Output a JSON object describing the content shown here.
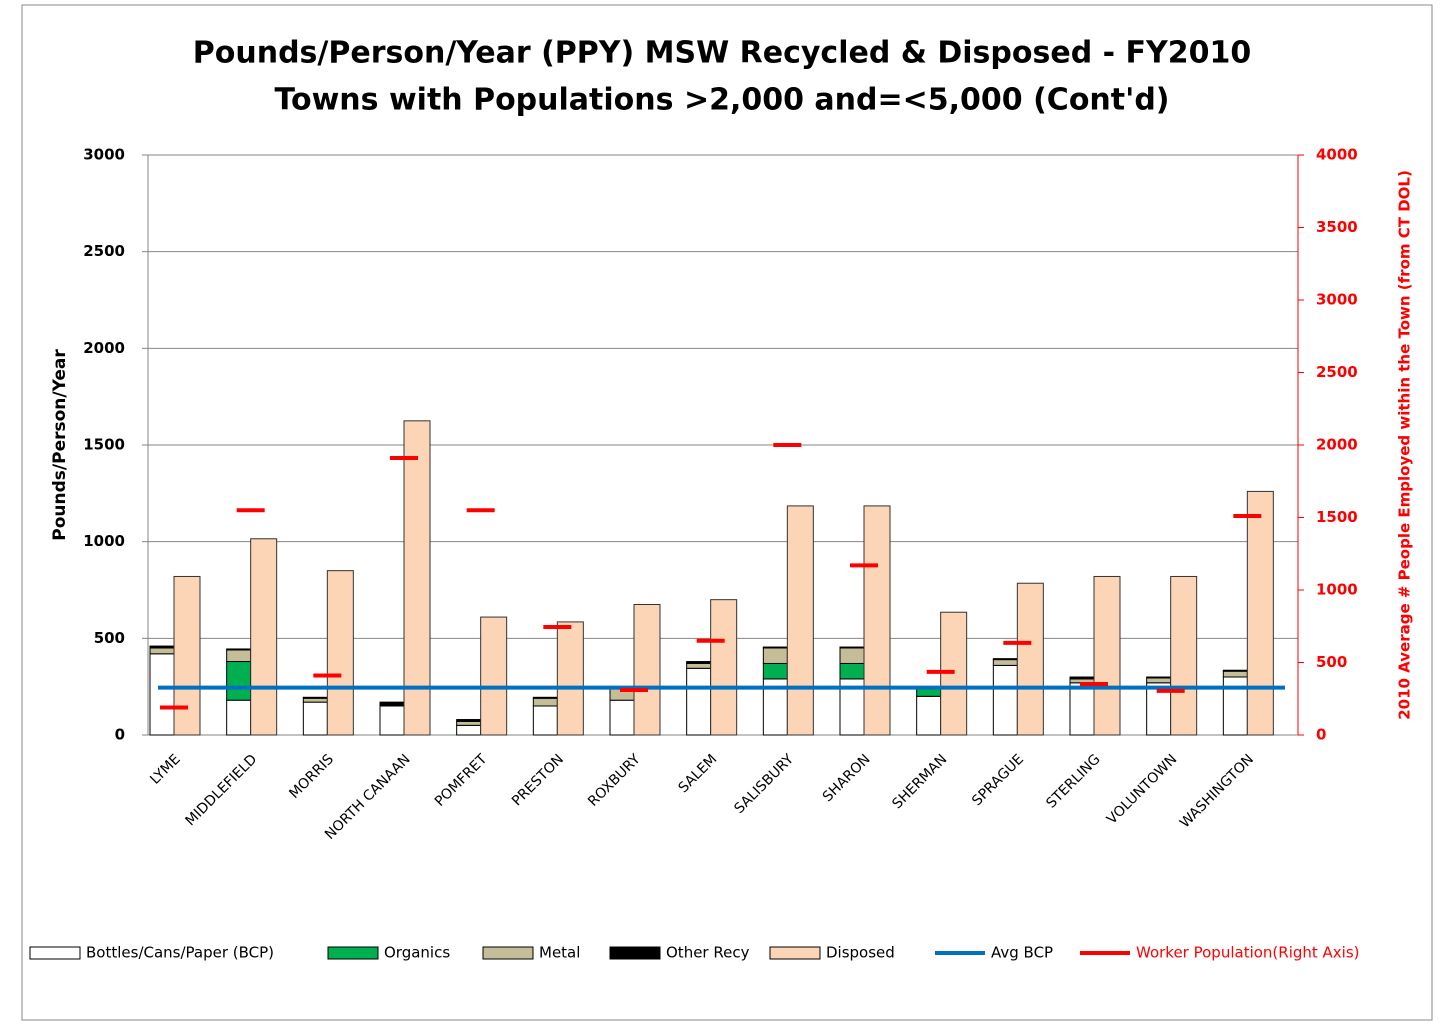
{
  "chart_data": {
    "type": "bar",
    "title": "Pounds/Person/Year (PPY) MSW Recycled & Disposed - FY2010",
    "subtitle": "Towns with Populations >2,000 and=<5,000 (Cont'd)",
    "ylabel": "Pounds/Person/Year",
    "y2label": "2010 Average # People Employed within the Town (from CT DOL)",
    "categories": [
      "LYME",
      "MIDDLEFIELD",
      "MORRIS",
      "NORTH CANAAN",
      "POMFRET",
      "PRESTON",
      "ROXBURY",
      "SALEM",
      "SALISBURY",
      "SHARON",
      "SHERMAN",
      "SPRAGUE",
      "STERLING",
      "VOLUNTOWN",
      "WASHINGTON"
    ],
    "series": [
      {
        "name": "Bottles/Cans/Paper (BCP)",
        "type": "stacked-bar",
        "color": "#ffffff",
        "values": [
          420,
          180,
          170,
          150,
          50,
          150,
          180,
          345,
          290,
          290,
          200,
          360,
          270,
          270,
          300
        ]
      },
      {
        "name": "Organics",
        "type": "stacked-bar",
        "color": "#00b050",
        "values": [
          0,
          200,
          0,
          0,
          0,
          0,
          0,
          0,
          80,
          80,
          40,
          0,
          0,
          0,
          0
        ]
      },
      {
        "name": "Metal",
        "type": "stacked-bar",
        "color": "#c4bd97",
        "values": [
          30,
          60,
          20,
          5,
          20,
          40,
          60,
          25,
          80,
          80,
          0,
          30,
          20,
          25,
          30
        ]
      },
      {
        "name": "Other Recy",
        "type": "stacked-bar",
        "color": "#000000",
        "values": [
          10,
          5,
          5,
          15,
          10,
          5,
          0,
          10,
          5,
          5,
          5,
          5,
          10,
          5,
          5
        ]
      },
      {
        "name": "Disposed",
        "type": "bar",
        "color": "#fbd5b5",
        "values": [
          820,
          1015,
          850,
          1625,
          610,
          585,
          675,
          700,
          1185,
          1185,
          635,
          785,
          820,
          820,
          1260
        ]
      },
      {
        "name": "Avg BCP",
        "type": "line",
        "color": "#0070c0",
        "values": [
          245,
          245,
          245,
          245,
          245,
          245,
          245,
          245,
          245,
          245,
          245,
          245,
          245,
          245,
          245
        ]
      },
      {
        "name": "Worker Population(Right Axis)",
        "type": "marker",
        "axis": "y2",
        "color": "#ff0000",
        "values": [
          190,
          1550,
          410,
          1910,
          1550,
          745,
          310,
          650,
          2000,
          1170,
          435,
          635,
          352,
          304,
          1510
        ]
      }
    ],
    "ylim": [
      0,
      3000
    ],
    "yticks": [
      0,
      500,
      1000,
      1500,
      2000,
      2500,
      3000
    ],
    "y2lim": [
      0,
      4000
    ],
    "y2ticks": [
      0,
      500,
      1000,
      1500,
      2000,
      2500,
      3000,
      3500,
      4000
    ],
    "grid": true,
    "legend": "bottom"
  }
}
